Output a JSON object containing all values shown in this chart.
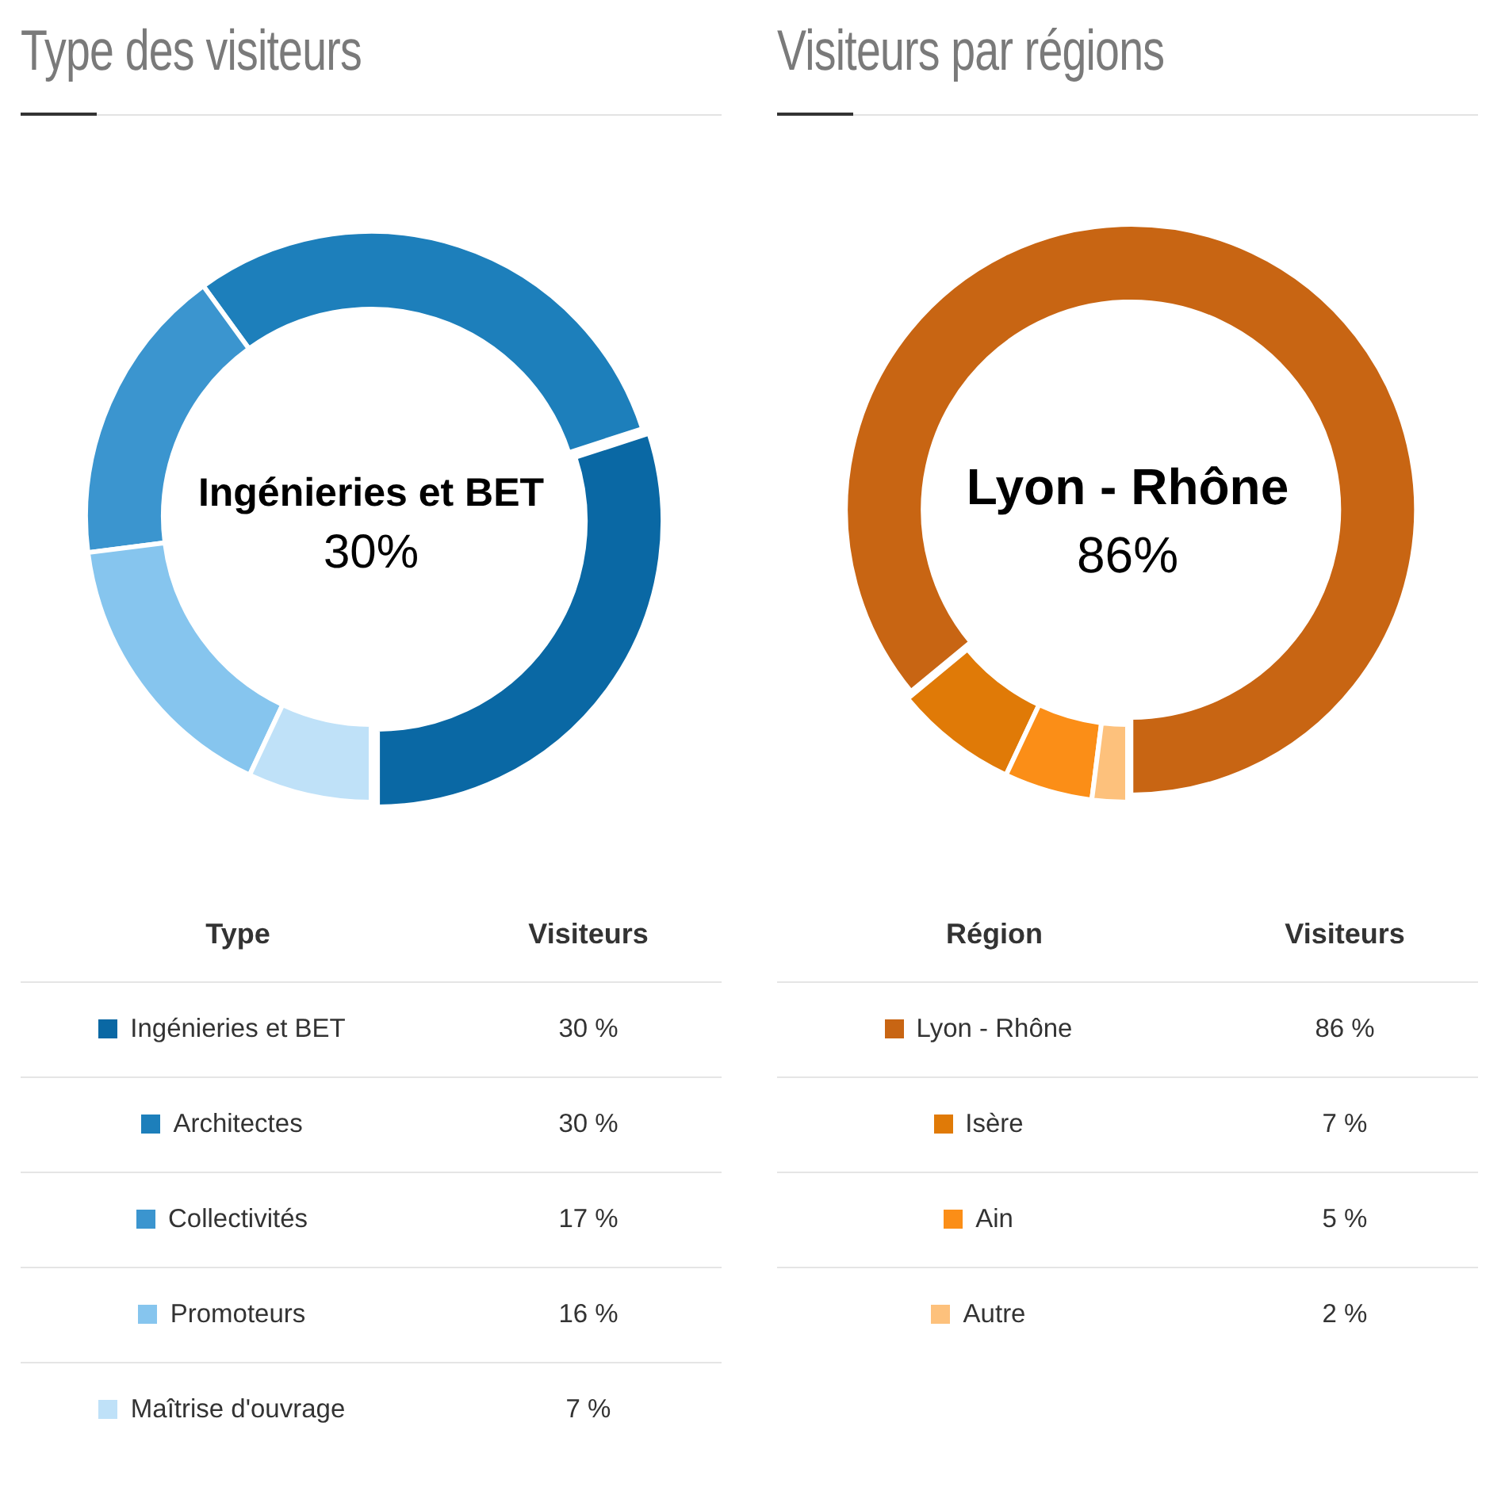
{
  "chart_data": [
    {
      "type": "donut",
      "title": "Type des visiteurs",
      "xlabel": "Type",
      "ylabel": "Visiteurs",
      "categories": [
        "Ingénieries et BET",
        "Architectes",
        "Collectivités",
        "Promoteurs",
        "Maîtrise d'ouvrage"
      ],
      "values": [
        30,
        30,
        17,
        16,
        7
      ],
      "colors": [
        "#0a68a4",
        "#1d7fbb",
        "#3b95cf",
        "#86c5ee",
        "#bfe1f8"
      ],
      "value_labels": [
        "30 %",
        "30 %",
        "17 %",
        "16 %",
        "7 %"
      ],
      "annotations": [
        "Ingénieries et BET",
        "30%"
      ],
      "legend": "bottom"
    },
    {
      "type": "donut",
      "title": "Visiteurs par régions",
      "xlabel": "Région",
      "ylabel": "Visiteurs",
      "categories": [
        "Lyon - Rhône",
        "Isère",
        "Ain",
        "Autre"
      ],
      "values": [
        86,
        7,
        5,
        2
      ],
      "colors": [
        "#c86513",
        "#e07a07",
        "#fb8e17",
        "#fdc17c"
      ],
      "value_labels": [
        "86 %",
        "7 %",
        "5 %",
        "2 %"
      ],
      "annotations": [
        "Lyon - Rhône",
        "86%"
      ],
      "legend": "bottom"
    }
  ]
}
